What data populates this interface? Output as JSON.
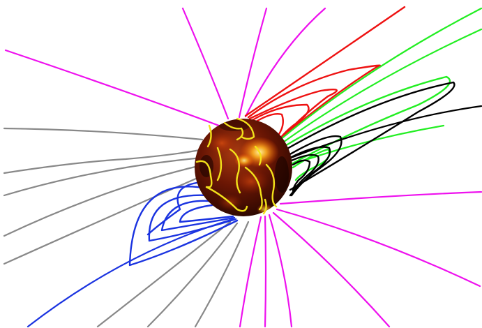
{
  "image": {
    "subject": "field-lines",
    "background": "#ffffff"
  },
  "colors": {
    "open_lines": "#ee11ee",
    "closed_gray": "#888888",
    "closed_blue": "#1a33e0",
    "closed_red": "#ee1111",
    "closed_green": "#22ee22",
    "closed_black": "#000000",
    "surface_loops": "#f2e21a",
    "sphere_dark": "#2a0600",
    "sphere_mid": "#7a1a05",
    "sphere_hot": "#ffd040"
  }
}
